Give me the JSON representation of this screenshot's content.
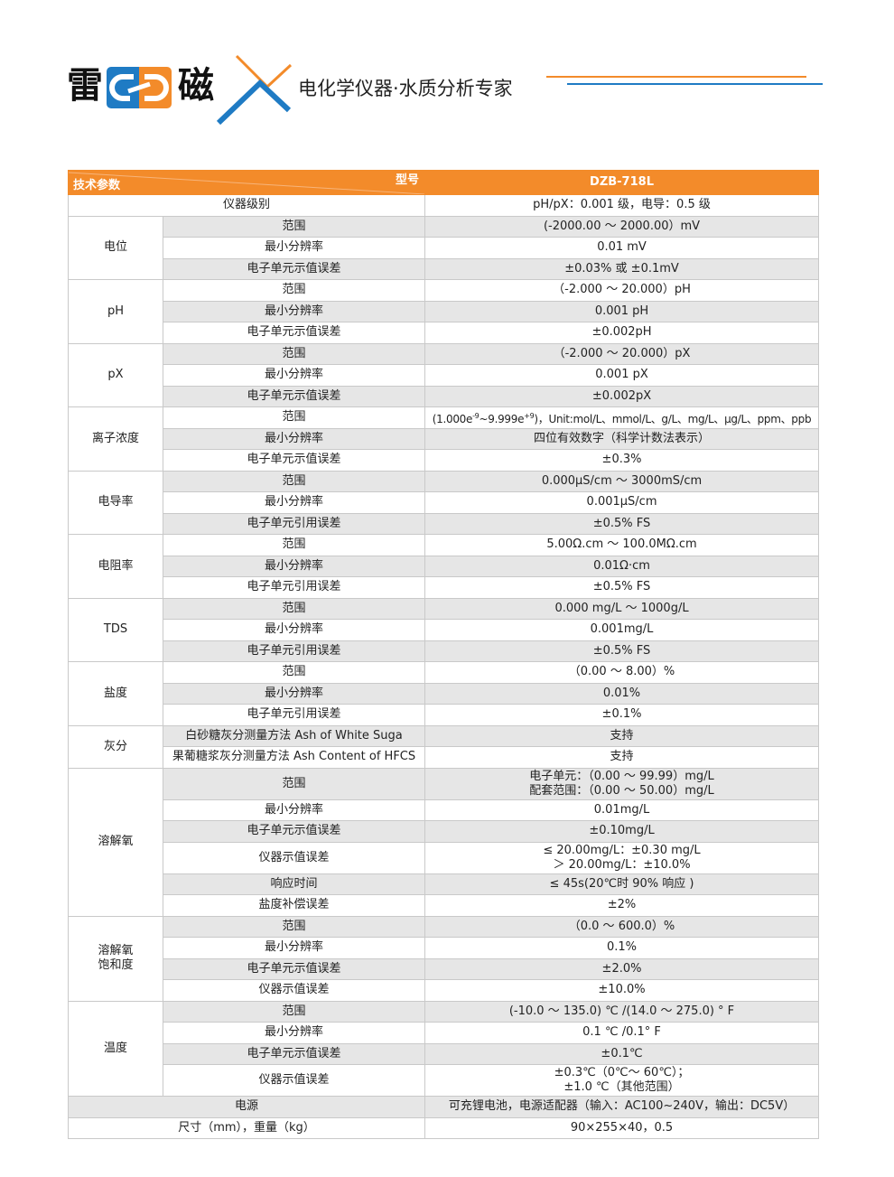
{
  "brand": {
    "char1": "雷",
    "char2": "磁",
    "slogan": "电化学仪器·水质分析专家",
    "colors": {
      "orange": "#f38b2a",
      "blue": "#1f7bc4"
    }
  },
  "table": {
    "header": {
      "param_label": "技术参数",
      "model_label": "型号",
      "model": "DZB-718L"
    },
    "rows": [
      {
        "full": "仪器级别",
        "value": "pH/pX：0.001 级，电导：0.5 级"
      },
      {
        "group": "电位",
        "items": [
          {
            "name": "范围",
            "value": "(-2000.00 ～ 2000.00）mV"
          },
          {
            "name": "最小分辨率",
            "value": "0.01 mV"
          },
          {
            "name": "电子单元示值误差",
            "value": "±0.03% 或 ±0.1mV"
          }
        ]
      },
      {
        "group": "pH",
        "items": [
          {
            "name": "范围",
            "value": "（-2.000 ～ 20.000）pH"
          },
          {
            "name": "最小分辨率",
            "value": "0.001 pH"
          },
          {
            "name": "电子单元示值误差",
            "value": "±0.002pH"
          }
        ]
      },
      {
        "group": "pX",
        "items": [
          {
            "name": "范围",
            "value": "（-2.000 ～ 20.000）pX"
          },
          {
            "name": "最小分辨率",
            "value": "0.001 pX"
          },
          {
            "name": "电子单元示值误差",
            "value": "±0.002pX"
          }
        ]
      },
      {
        "group": "离子浓度",
        "items": [
          {
            "name": "范围",
            "value": "(1.000e-9~9.999e+9)，Unit:mol/L、mmol/L、g/L、mg/L、μg/L、ppm、ppb"
          },
          {
            "name": "最小分辨率",
            "value": "四位有效数字（科学计数法表示）"
          },
          {
            "name": "电子单元示值误差",
            "value": "±0.3%"
          }
        ]
      },
      {
        "group": "电导率",
        "items": [
          {
            "name": "范围",
            "value": "0.000μS/cm ～ 3000mS/cm"
          },
          {
            "name": "最小分辨率",
            "value": "0.001μS/cm"
          },
          {
            "name": "电子单元引用误差",
            "value": "±0.5% FS"
          }
        ]
      },
      {
        "group": "电阻率",
        "items": [
          {
            "name": "范围",
            "value": "5.00Ω.cm ～ 100.0MΩ.cm"
          },
          {
            "name": "最小分辨率",
            "value": "0.01Ω·cm"
          },
          {
            "name": "电子单元引用误差",
            "value": "±0.5% FS"
          }
        ]
      },
      {
        "group": "TDS",
        "items": [
          {
            "name": "范围",
            "value": "0.000 mg/L ～ 1000g/L"
          },
          {
            "name": "最小分辨率",
            "value": "0.001mg/L"
          },
          {
            "name": "电子单元引用误差",
            "value": "±0.5% FS"
          }
        ]
      },
      {
        "group": "盐度",
        "items": [
          {
            "name": "范围",
            "value": "（0.00 ～ 8.00）%"
          },
          {
            "name": "最小分辨率",
            "value": "0.01%"
          },
          {
            "name": "电子单元引用误差",
            "value": "±0.1%"
          }
        ]
      },
      {
        "group": "灰分",
        "items": [
          {
            "name": "白砂糖灰分测量方法 Ash of White Suga",
            "value": "支持"
          },
          {
            "name": "果葡糖浆灰分测量方法 Ash Content of HFCS",
            "value": "支持"
          }
        ]
      },
      {
        "group": "溶解氧",
        "items": [
          {
            "name": "范围",
            "value": "电子单元：（0.00 ～ 99.99）mg/L\n配套范围：（0.00 ～ 50.00）mg/L"
          },
          {
            "name": "最小分辨率",
            "value": "0.01mg/L"
          },
          {
            "name": "电子单元示值误差",
            "value": "±0.10mg/L"
          },
          {
            "name": "仪器示值误差",
            "value": "≤ 20.00mg/L：±0.30 mg/L\n＞ 20.00mg/L：±10.0%"
          },
          {
            "name": "响应时间",
            "value": "≤ 45s(20℃时 90% 响应 )"
          },
          {
            "name": "盐度补偿误差",
            "value": "±2%"
          }
        ]
      },
      {
        "group": "溶解氧\n饱和度",
        "items": [
          {
            "name": "范围",
            "value": "（0.0 ～ 600.0）%"
          },
          {
            "name": "最小分辨率",
            "value": "0.1%"
          },
          {
            "name": "电子单元示值误差",
            "value": "±2.0%"
          },
          {
            "name": "仪器示值误差",
            "value": "±10.0%"
          }
        ]
      },
      {
        "group": "温度",
        "items": [
          {
            "name": "范围",
            "value": "(-10.0 ～ 135.0) ℃ /(14.0 ～ 275.0) ° F"
          },
          {
            "name": "最小分辨率",
            "value": "0.1 ℃ /0.1° F"
          },
          {
            "name": "电子单元示值误差",
            "value": "±0.1℃"
          },
          {
            "name": "仪器示值误差",
            "value": "±0.3℃（0℃～ 60℃）；\n±1.0 ℃（其他范围）"
          }
        ]
      },
      {
        "full": "电源",
        "value": "可充锂电池，电源适配器（输入：AC100~240V，输出：DC5V）"
      },
      {
        "full": "尺寸（mm），重量（kg）",
        "value": "90×255×40，0.5"
      }
    ]
  }
}
